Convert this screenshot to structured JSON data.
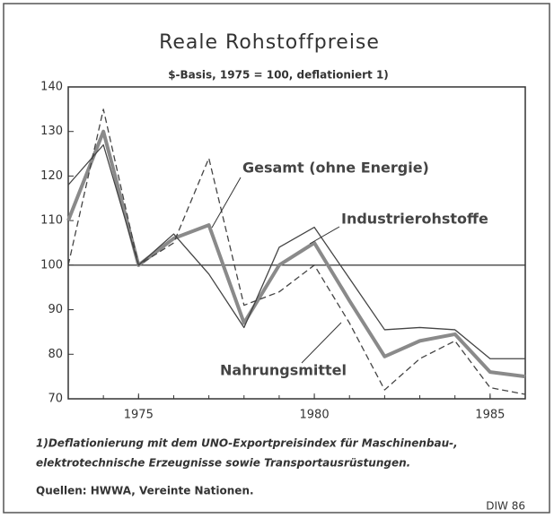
{
  "chart_data": {
    "type": "line",
    "title": "Reale Rohstoffpreise",
    "subtitle": "$-Basis, 1975 = 100, deflationiert 1)",
    "x": [
      1973,
      1974,
      1975,
      1976,
      1977,
      1978,
      1979,
      1980,
      1981,
      1982,
      1983,
      1984,
      1985,
      1986
    ],
    "series": [
      {
        "name": "Gesamt (ohne Energie)",
        "color": "#8a8a8a",
        "line_style": "thick",
        "values": [
          110,
          130,
          100,
          106,
          109,
          87,
          100,
          105,
          92,
          79.5,
          83,
          84.5,
          76,
          75
        ]
      },
      {
        "name": "Industrierohstoffe",
        "color": "#444444",
        "line_style": "thin",
        "values": [
          118,
          127,
          100,
          107,
          98,
          86,
          104,
          108.5,
          97,
          85.5,
          86,
          85.5,
          79,
          79
        ]
      },
      {
        "name": "Nahrungsmittel",
        "color": "#444444",
        "line_style": "dashed",
        "values": [
          100,
          135,
          100,
          105,
          124,
          91,
          94,
          100,
          87,
          72,
          79,
          83,
          72.5,
          71
        ]
      }
    ],
    "xlim": [
      1973,
      1986
    ],
    "xticks": [
      1975,
      1980,
      1985
    ],
    "ylim": [
      70,
      140
    ],
    "yticks": [
      70,
      80,
      90,
      100,
      110,
      120,
      130,
      140
    ],
    "reference_line": 100,
    "footnote": [
      "1)Deflationierung mit dem UNO-Exportpreisindex für Maschinenbau-,",
      "elektrotechnische Erzeugnisse sowie Transportausrüstungen."
    ],
    "source": "Quellen: HWWA, Vereinte Nationen.",
    "credit": "DIW 86"
  }
}
